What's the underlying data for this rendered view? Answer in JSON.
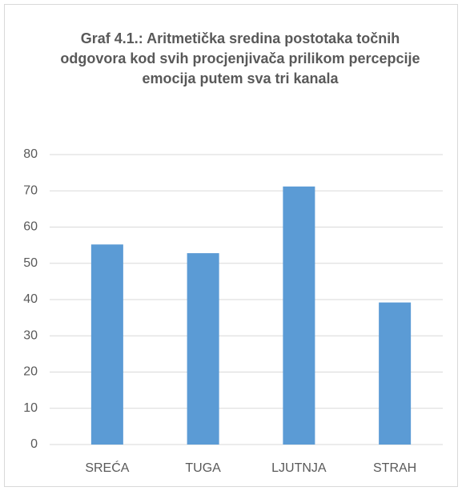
{
  "chart_data": {
    "type": "bar",
    "title": "Graf 4.1.: Aritmetička sredina postotaka točnih odgovora kod svih procjenjivača prilikom percepcije emocija putem sva tri kanala",
    "categories": [
      "SREĆA",
      "TUGA",
      "LJUTNJA",
      "STRAH"
    ],
    "values": [
      55.2,
      52.8,
      71.2,
      39.2
    ],
    "color": "#5b9bd5",
    "ylim": [
      0,
      80
    ],
    "yticks": [
      0,
      10,
      20,
      30,
      40,
      50,
      60,
      70,
      80
    ],
    "grid": true
  }
}
